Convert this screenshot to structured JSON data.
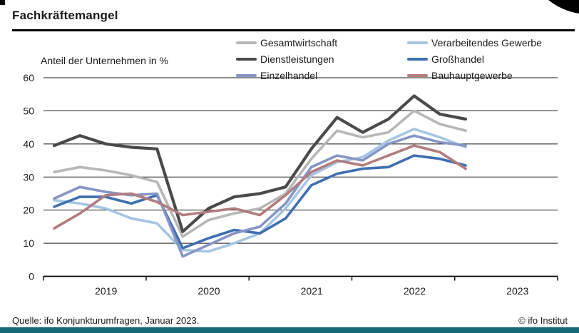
{
  "page": {
    "title": "Fachkräftemangel",
    "subtitle": "Anteil der Unternehmen in %",
    "source": "Quelle: ifo Konjunkturumfragen, Januar 2023.",
    "copyright": "© ifo Institut",
    "accent_color": "#176974",
    "corner_mark_color": "#000000"
  },
  "chart_data": {
    "type": "line",
    "title": "Fachkräftemangel",
    "subtitle": "Anteil der Unternehmen in %",
    "x": [
      "2019 Q1",
      "2019 Q2",
      "2019 Q3",
      "2019 Q4",
      "2020 Q1",
      "2020 Q2",
      "2020 Q3",
      "2020 Q4",
      "2021 Q1",
      "2021 Q2",
      "2021 Q3",
      "2021 Q4",
      "2022 Q1",
      "2022 Q2",
      "2022 Q3",
      "2022 Q4",
      "2023 Q1"
    ],
    "x_axis_year_labels": [
      "2019",
      "2020",
      "2021",
      "2022",
      "2023"
    ],
    "ylim": [
      0,
      60
    ],
    "ytick_step": 10,
    "grid": "horizontal",
    "legend_position": "top-right, two columns",
    "series": [
      {
        "name": "Gesamtwirtschaft",
        "color": "#b7b7b7",
        "width": 3.6,
        "values": [
          31.5,
          33,
          32,
          30.5,
          28.5,
          12,
          17,
          19,
          20.5,
          25,
          35.5,
          44,
          42,
          43.5,
          50,
          46,
          44
        ]
      },
      {
        "name": "Verarbeitendes Gewerbe",
        "color": "#a6c5e4",
        "width": 3.6,
        "values": [
          23,
          22,
          20.5,
          17.5,
          16,
          8,
          7.5,
          10,
          13,
          20.5,
          30.5,
          34.5,
          36,
          41,
          44.5,
          42,
          39
        ]
      },
      {
        "name": "Dienstleistungen",
        "color": "#4a4a4a",
        "width": 4.2,
        "values": [
          39.5,
          42.5,
          40,
          39,
          38.5,
          13.5,
          20.5,
          24,
          25,
          27,
          38.5,
          48,
          43.5,
          47.5,
          54.5,
          49,
          47.5
        ]
      },
      {
        "name": "Großhandel",
        "color": "#3e6fb1",
        "width": 3.6,
        "values": [
          21,
          24,
          24,
          22,
          24.5,
          8.5,
          11.5,
          14,
          13,
          17.5,
          27.5,
          31,
          32.5,
          33,
          36.5,
          35.5,
          33.5
        ]
      },
      {
        "name": "Einzelhandel",
        "color": "#8695c6",
        "width": 3.6,
        "values": [
          23.5,
          27,
          25.5,
          24.5,
          25,
          6,
          9.5,
          13,
          15,
          22,
          33,
          36.5,
          35,
          40,
          42.5,
          40.5,
          39.5
        ]
      },
      {
        "name": "Bauhauptgewerbe",
        "color": "#b27c7e",
        "width": 3.6,
        "values": [
          14.5,
          19,
          24.5,
          25,
          22.5,
          18.5,
          19.5,
          20.5,
          18.5,
          24.5,
          31.5,
          35,
          33.5,
          36.5,
          39.5,
          37.5,
          32.5
        ]
      }
    ]
  }
}
